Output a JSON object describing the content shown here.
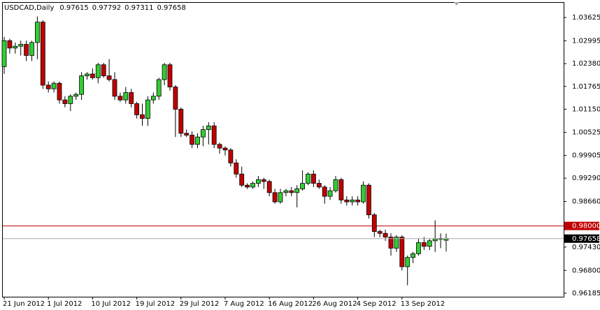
{
  "chart_data": {
    "type": "candlestick",
    "title": "USDCAD,Daily",
    "categories": [
      "21 Jun 2012",
      null,
      null,
      null,
      null,
      null,
      null,
      null,
      "1 Jul 2012",
      null,
      null,
      null,
      null,
      null,
      null,
      null,
      "10 Jul 2012",
      null,
      null,
      null,
      null,
      null,
      null,
      null,
      "19 Jul 2012",
      null,
      null,
      null,
      null,
      null,
      null,
      null,
      "29 Jul 2012",
      null,
      null,
      null,
      null,
      null,
      null,
      null,
      "7 Aug 2012",
      null,
      null,
      null,
      null,
      null,
      null,
      null,
      "16 Aug 2012",
      null,
      null,
      null,
      null,
      null,
      null,
      null,
      "26 Aug 2012",
      null,
      null,
      null,
      null,
      null,
      null,
      null,
      "4 Sep 2012",
      null,
      null,
      null,
      null,
      null,
      null,
      null,
      "13 Sep 2012",
      null,
      null,
      null,
      null,
      null,
      null,
      null,
      null
    ],
    "open": [
      1.023,
      1.03,
      1.028,
      1.0285,
      1.029,
      1.026,
      1.0295,
      1.035,
      1.018,
      1.017,
      1.0185,
      1.014,
      1.013,
      1.015,
      1.0155,
      1.0205,
      1.021,
      1.02,
      1.0235,
      1.0205,
      1.0195,
      1.015,
      1.014,
      1.016,
      1.013,
      1.01,
      1.009,
      1.014,
      1.015,
      1.0195,
      1.0235,
      1.0175,
      1.0115,
      1.005,
      1.0045,
      1.002,
      1.004,
      1.006,
      1.007,
      1.002,
      1.001,
      1.0005,
      0.997,
      0.994,
      0.991,
      0.9905,
      0.9915,
      0.9925,
      0.992,
      0.989,
      0.9865,
      0.989,
      0.9895,
      0.989,
      0.99,
      0.9915,
      0.994,
      0.9915,
      0.9905,
      0.988,
      0.9895,
      0.9925,
      0.987,
      0.9865,
      0.987,
      0.9865,
      0.991,
      0.983,
      0.9785,
      0.978,
      0.977,
      0.974,
      0.977,
      0.969,
      0.9715,
      0.9725,
      0.9755,
      0.9745,
      0.976,
      0.9765,
      0.97615
    ],
    "high": [
      1.031,
      1.0305,
      1.0295,
      1.03,
      1.03,
      1.03,
      1.0365,
      1.0355,
      1.019,
      1.019,
      1.019,
      1.015,
      1.0155,
      1.016,
      1.0215,
      1.0215,
      1.0225,
      1.024,
      1.024,
      1.025,
      1.0215,
      1.016,
      1.0175,
      1.017,
      1.0135,
      1.013,
      1.015,
      1.016,
      1.02,
      1.024,
      1.024,
      1.018,
      1.012,
      1.006,
      1.0055,
      1.005,
      1.007,
      1.008,
      1.008,
      1.0025,
      1.0015,
      1.001,
      0.998,
      0.996,
      0.9915,
      0.992,
      0.9935,
      0.993,
      0.9925,
      0.99,
      0.99,
      0.99,
      0.9905,
      0.991,
      0.995,
      0.9945,
      0.995,
      0.9925,
      0.991,
      0.9905,
      0.9935,
      0.993,
      0.988,
      0.988,
      0.988,
      0.992,
      0.9915,
      0.9835,
      0.979,
      0.979,
      0.978,
      0.9775,
      0.9775,
      0.972,
      0.973,
      0.9765,
      0.977,
      0.9765,
      0.9815,
      0.978,
      0.97792
    ],
    "low": [
      1.021,
      1.0265,
      1.0265,
      1.026,
      1.0245,
      1.0245,
      1.025,
      1.017,
      1.016,
      1.016,
      1.013,
      1.012,
      1.011,
      1.014,
      1.014,
      1.0195,
      1.0195,
      1.0185,
      1.02,
      1.019,
      1.014,
      1.0135,
      1.013,
      1.012,
      1.009,
      1.007,
      1.007,
      1.013,
      1.014,
      1.018,
      1.0165,
      1.004,
      1.004,
      1.004,
      1.001,
      1.001,
      1.0015,
      1.002,
      1.001,
      0.9995,
      0.999,
      0.996,
      0.993,
      0.9905,
      0.99,
      0.99,
      0.9905,
      0.99,
      0.988,
      0.986,
      0.986,
      0.988,
      0.988,
      0.985,
      0.9895,
      0.991,
      0.9905,
      0.99,
      0.986,
      0.987,
      0.989,
      0.986,
      0.9855,
      0.9855,
      0.9855,
      0.986,
      0.982,
      0.977,
      0.977,
      0.976,
      0.972,
      0.973,
      0.968,
      0.964,
      0.97,
      0.972,
      0.9735,
      0.9735,
      0.973,
      0.974,
      0.97311
    ],
    "close": [
      1.03,
      1.028,
      1.0285,
      1.029,
      1.026,
      1.0295,
      1.035,
      1.018,
      1.017,
      1.0185,
      1.014,
      1.013,
      1.015,
      1.0155,
      1.0205,
      1.021,
      1.02,
      1.0235,
      1.0205,
      1.0195,
      1.015,
      1.014,
      1.016,
      1.013,
      1.01,
      1.009,
      1.014,
      1.015,
      1.0195,
      1.0235,
      1.0175,
      1.0115,
      1.005,
      1.0045,
      1.002,
      1.004,
      1.006,
      1.007,
      1.002,
      1.001,
      1.0005,
      0.997,
      0.994,
      0.991,
      0.9905,
      0.9915,
      0.9925,
      0.992,
      0.989,
      0.9865,
      0.989,
      0.9895,
      0.989,
      0.99,
      0.9915,
      0.994,
      0.9915,
      0.9905,
      0.988,
      0.9895,
      0.9925,
      0.987,
      0.9865,
      0.987,
      0.9865,
      0.991,
      0.983,
      0.9785,
      0.978,
      0.977,
      0.974,
      0.977,
      0.969,
      0.9715,
      0.9725,
      0.9755,
      0.9745,
      0.976,
      0.9765,
      0.9766,
      0.97658
    ],
    "up_color": "#32cd32",
    "down_color": "#c00000",
    "ylim": [
      0.9609,
      1.0404
    ],
    "yticks": [
      1.03625,
      1.02995,
      {
        "value": 1.0238,
        "label": "1.02380"
      },
      1.01765,
      {
        "value": 1.0115,
        "label": "1.01150"
      },
      1.00525,
      0.99905,
      {
        "value": 0.9929,
        "label": "0.99290"
      },
      {
        "value": 0.9866,
        "label": "0.98660"
      },
      {
        "value": 0.9743,
        "label": "0.97430"
      },
      {
        "value": 0.968,
        "label": "0.96800"
      },
      0.96185
    ],
    "hlines": [
      {
        "value": 0.98,
        "label": "0.98000",
        "color": "#c00000"
      }
    ]
  }
}
